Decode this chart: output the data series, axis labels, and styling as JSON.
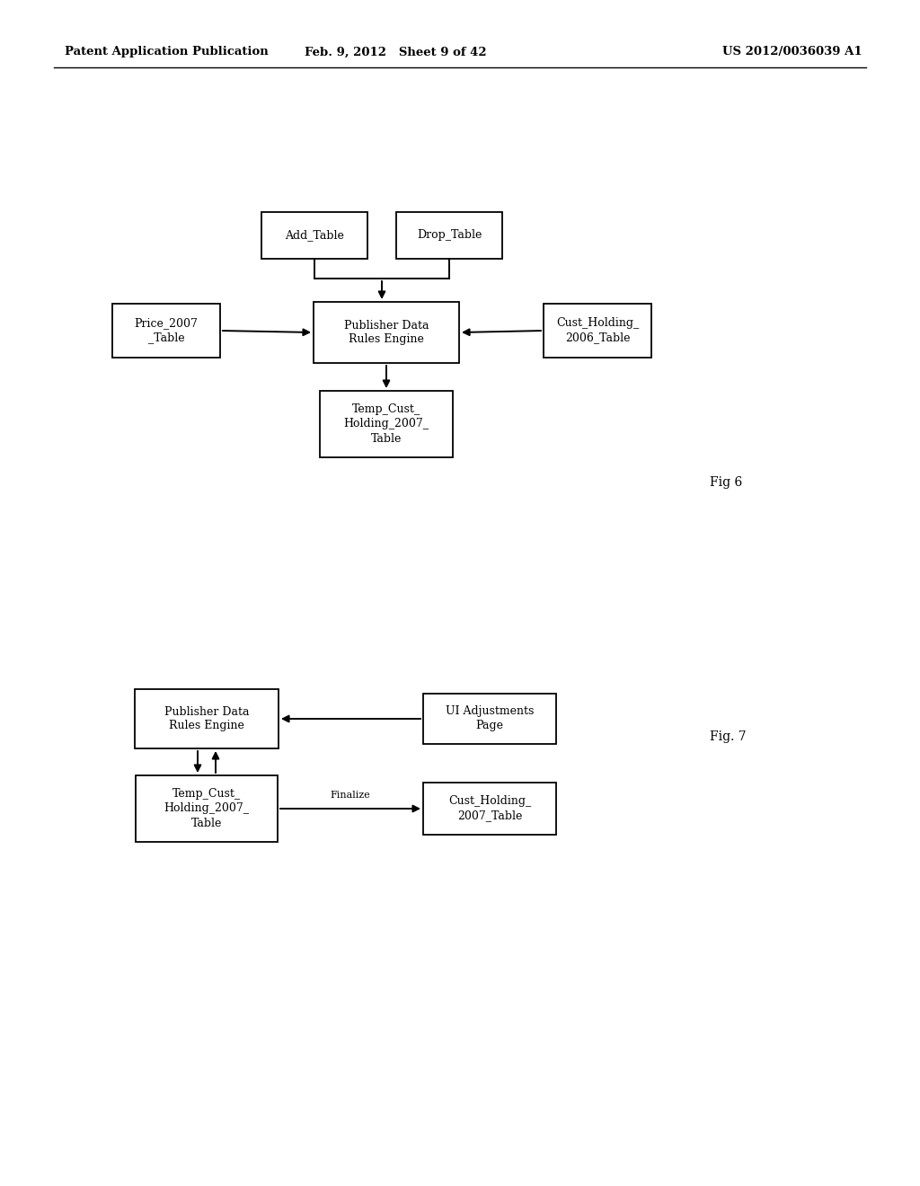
{
  "header_left": "Patent Application Publication",
  "header_mid": "Feb. 9, 2012   Sheet 9 of 42",
  "header_right": "US 2012/0036039 A1",
  "fig6_label": "Fig 6",
  "fig7_label": "Fig. 7",
  "box_color": "#ffffff",
  "box_edge": "#000000",
  "arrow_color": "#000000",
  "text_color": "#000000",
  "background": "#ffffff",
  "font_size_box": 9,
  "font_size_header": 9.5,
  "font_size_fig": 10,
  "font_size_finalize": 8
}
